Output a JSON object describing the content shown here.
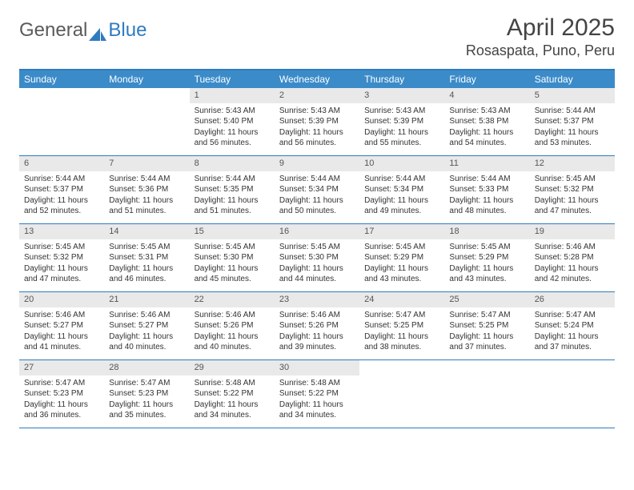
{
  "brand": {
    "general": "General",
    "blue": "Blue"
  },
  "title": "April 2025",
  "location": "Rosaspata, Puno, Peru",
  "colors": {
    "header_bg": "#3b8bc9",
    "border": "#2f7bbf",
    "daynum_bg": "#e9e9e9",
    "text": "#333333"
  },
  "dow": [
    "Sunday",
    "Monday",
    "Tuesday",
    "Wednesday",
    "Thursday",
    "Friday",
    "Saturday"
  ],
  "weeks": [
    [
      {
        "n": "",
        "sr": "",
        "ss": "",
        "dl": ""
      },
      {
        "n": "",
        "sr": "",
        "ss": "",
        "dl": ""
      },
      {
        "n": "1",
        "sr": "Sunrise: 5:43 AM",
        "ss": "Sunset: 5:40 PM",
        "dl": "Daylight: 11 hours and 56 minutes."
      },
      {
        "n": "2",
        "sr": "Sunrise: 5:43 AM",
        "ss": "Sunset: 5:39 PM",
        "dl": "Daylight: 11 hours and 56 minutes."
      },
      {
        "n": "3",
        "sr": "Sunrise: 5:43 AM",
        "ss": "Sunset: 5:39 PM",
        "dl": "Daylight: 11 hours and 55 minutes."
      },
      {
        "n": "4",
        "sr": "Sunrise: 5:43 AM",
        "ss": "Sunset: 5:38 PM",
        "dl": "Daylight: 11 hours and 54 minutes."
      },
      {
        "n": "5",
        "sr": "Sunrise: 5:44 AM",
        "ss": "Sunset: 5:37 PM",
        "dl": "Daylight: 11 hours and 53 minutes."
      }
    ],
    [
      {
        "n": "6",
        "sr": "Sunrise: 5:44 AM",
        "ss": "Sunset: 5:37 PM",
        "dl": "Daylight: 11 hours and 52 minutes."
      },
      {
        "n": "7",
        "sr": "Sunrise: 5:44 AM",
        "ss": "Sunset: 5:36 PM",
        "dl": "Daylight: 11 hours and 51 minutes."
      },
      {
        "n": "8",
        "sr": "Sunrise: 5:44 AM",
        "ss": "Sunset: 5:35 PM",
        "dl": "Daylight: 11 hours and 51 minutes."
      },
      {
        "n": "9",
        "sr": "Sunrise: 5:44 AM",
        "ss": "Sunset: 5:34 PM",
        "dl": "Daylight: 11 hours and 50 minutes."
      },
      {
        "n": "10",
        "sr": "Sunrise: 5:44 AM",
        "ss": "Sunset: 5:34 PM",
        "dl": "Daylight: 11 hours and 49 minutes."
      },
      {
        "n": "11",
        "sr": "Sunrise: 5:44 AM",
        "ss": "Sunset: 5:33 PM",
        "dl": "Daylight: 11 hours and 48 minutes."
      },
      {
        "n": "12",
        "sr": "Sunrise: 5:45 AM",
        "ss": "Sunset: 5:32 PM",
        "dl": "Daylight: 11 hours and 47 minutes."
      }
    ],
    [
      {
        "n": "13",
        "sr": "Sunrise: 5:45 AM",
        "ss": "Sunset: 5:32 PM",
        "dl": "Daylight: 11 hours and 47 minutes."
      },
      {
        "n": "14",
        "sr": "Sunrise: 5:45 AM",
        "ss": "Sunset: 5:31 PM",
        "dl": "Daylight: 11 hours and 46 minutes."
      },
      {
        "n": "15",
        "sr": "Sunrise: 5:45 AM",
        "ss": "Sunset: 5:30 PM",
        "dl": "Daylight: 11 hours and 45 minutes."
      },
      {
        "n": "16",
        "sr": "Sunrise: 5:45 AM",
        "ss": "Sunset: 5:30 PM",
        "dl": "Daylight: 11 hours and 44 minutes."
      },
      {
        "n": "17",
        "sr": "Sunrise: 5:45 AM",
        "ss": "Sunset: 5:29 PM",
        "dl": "Daylight: 11 hours and 43 minutes."
      },
      {
        "n": "18",
        "sr": "Sunrise: 5:45 AM",
        "ss": "Sunset: 5:29 PM",
        "dl": "Daylight: 11 hours and 43 minutes."
      },
      {
        "n": "19",
        "sr": "Sunrise: 5:46 AM",
        "ss": "Sunset: 5:28 PM",
        "dl": "Daylight: 11 hours and 42 minutes."
      }
    ],
    [
      {
        "n": "20",
        "sr": "Sunrise: 5:46 AM",
        "ss": "Sunset: 5:27 PM",
        "dl": "Daylight: 11 hours and 41 minutes."
      },
      {
        "n": "21",
        "sr": "Sunrise: 5:46 AM",
        "ss": "Sunset: 5:27 PM",
        "dl": "Daylight: 11 hours and 40 minutes."
      },
      {
        "n": "22",
        "sr": "Sunrise: 5:46 AM",
        "ss": "Sunset: 5:26 PM",
        "dl": "Daylight: 11 hours and 40 minutes."
      },
      {
        "n": "23",
        "sr": "Sunrise: 5:46 AM",
        "ss": "Sunset: 5:26 PM",
        "dl": "Daylight: 11 hours and 39 minutes."
      },
      {
        "n": "24",
        "sr": "Sunrise: 5:47 AM",
        "ss": "Sunset: 5:25 PM",
        "dl": "Daylight: 11 hours and 38 minutes."
      },
      {
        "n": "25",
        "sr": "Sunrise: 5:47 AM",
        "ss": "Sunset: 5:25 PM",
        "dl": "Daylight: 11 hours and 37 minutes."
      },
      {
        "n": "26",
        "sr": "Sunrise: 5:47 AM",
        "ss": "Sunset: 5:24 PM",
        "dl": "Daylight: 11 hours and 37 minutes."
      }
    ],
    [
      {
        "n": "27",
        "sr": "Sunrise: 5:47 AM",
        "ss": "Sunset: 5:23 PM",
        "dl": "Daylight: 11 hours and 36 minutes."
      },
      {
        "n": "28",
        "sr": "Sunrise: 5:47 AM",
        "ss": "Sunset: 5:23 PM",
        "dl": "Daylight: 11 hours and 35 minutes."
      },
      {
        "n": "29",
        "sr": "Sunrise: 5:48 AM",
        "ss": "Sunset: 5:22 PM",
        "dl": "Daylight: 11 hours and 34 minutes."
      },
      {
        "n": "30",
        "sr": "Sunrise: 5:48 AM",
        "ss": "Sunset: 5:22 PM",
        "dl": "Daylight: 11 hours and 34 minutes."
      },
      {
        "n": "",
        "sr": "",
        "ss": "",
        "dl": ""
      },
      {
        "n": "",
        "sr": "",
        "ss": "",
        "dl": ""
      },
      {
        "n": "",
        "sr": "",
        "ss": "",
        "dl": ""
      }
    ]
  ]
}
